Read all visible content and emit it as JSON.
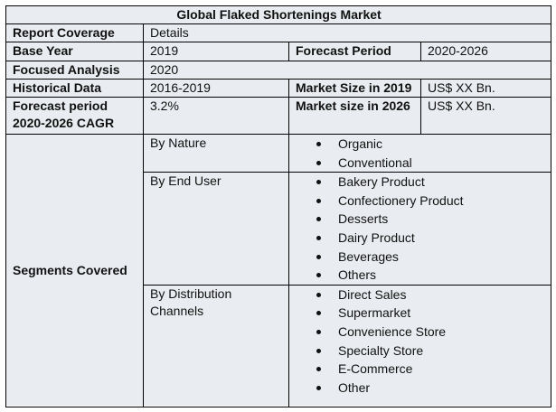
{
  "title": "Global Flaked Shortenings Market",
  "rows": {
    "coverage": {
      "label": "Report Coverage",
      "value": "Details"
    },
    "base_year": {
      "label": "Base Year",
      "value": "2019",
      "label2": "Forecast Period",
      "value2": "2020-2026"
    },
    "focused": {
      "label": "Focused Analysis",
      "value": "2020"
    },
    "historical": {
      "label": "Historical Data",
      "value": "2016-2019",
      "label2": "Market Size in 2019",
      "value2": "US$ XX Bn."
    },
    "forecast": {
      "label": "Forecast period 2020-2026 CAGR",
      "value": "3.2%",
      "label2": "Market size in 2026",
      "value2": "US$ XX Bn."
    }
  },
  "segments": {
    "label": "Segments Covered",
    "groups": [
      {
        "name": "By Nature",
        "items": [
          "Organic",
          "Conventional"
        ]
      },
      {
        "name": "By End User",
        "items": [
          "Bakery Product",
          "Confectionery Product",
          "Desserts",
          "Dairy Product",
          "Beverages",
          "Others"
        ]
      },
      {
        "name": "By Distribution Channels",
        "items": [
          "Direct Sales",
          "Supermarket",
          "Convenience Store",
          "Specialty Store",
          "E-Commerce",
          "Other"
        ]
      }
    ]
  }
}
